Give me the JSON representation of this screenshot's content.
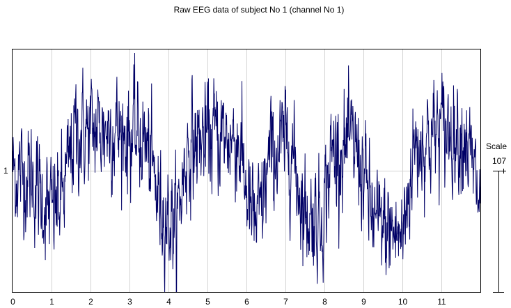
{
  "title": "Raw EEG data of subject No 1 (channel No 1)",
  "y_axis": {
    "channel_label": "1"
  },
  "scale": {
    "label": "Scale",
    "value": "107"
  },
  "x_axis": {
    "ticks": [
      "0",
      "1",
      "2",
      "3",
      "4",
      "5",
      "6",
      "7",
      "8",
      "9",
      "10",
      "11"
    ]
  },
  "colors": {
    "trace": "#000066",
    "trace_light": "#6f6fa8",
    "grid": "#d3d3d3",
    "axes": "#000000"
  },
  "chart_data": {
    "type": "line",
    "title": "Raw EEG data of subject No 1 (channel No 1)",
    "xlabel": "",
    "ylabel": "",
    "xlim": [
      0,
      12
    ],
    "x_tick_labels": [
      "0",
      "1",
      "2",
      "3",
      "4",
      "5",
      "6",
      "7",
      "8",
      "9",
      "10",
      "11"
    ],
    "y_tick_labels": [
      "1"
    ],
    "grid": true,
    "legend": null,
    "scale_bar": {
      "label": "Scale",
      "value": 107
    },
    "series": [
      {
        "name": "channel 1",
        "note": "dense raw EEG trace (~1500 samples); envelope of local mean in relative units (0 = baseline '1' gridline, +1 = top of plot, -1 = bottom)",
        "envelope_t": [
          0,
          0.5,
          0.8,
          1.0,
          1.3,
          1.6,
          2.5,
          3.4,
          3.8,
          4.2,
          4.5,
          5.2,
          5.8,
          6.1,
          6.3,
          6.6,
          7.1,
          7.5,
          7.9,
          8.2,
          8.8,
          9.3,
          9.7,
          10.0,
          10.3,
          11.0,
          11.6,
          12.0
        ],
        "envelope_mean": [
          0.0,
          -0.05,
          -0.25,
          -0.35,
          -0.2,
          0.3,
          0.35,
          0.25,
          -0.3,
          -0.45,
          0.2,
          0.3,
          0.25,
          -0.35,
          -0.45,
          0.1,
          0.25,
          -0.35,
          -0.4,
          0.15,
          0.2,
          -0.45,
          -0.5,
          -0.55,
          0.2,
          0.35,
          0.3,
          -0.3
        ]
      }
    ]
  }
}
